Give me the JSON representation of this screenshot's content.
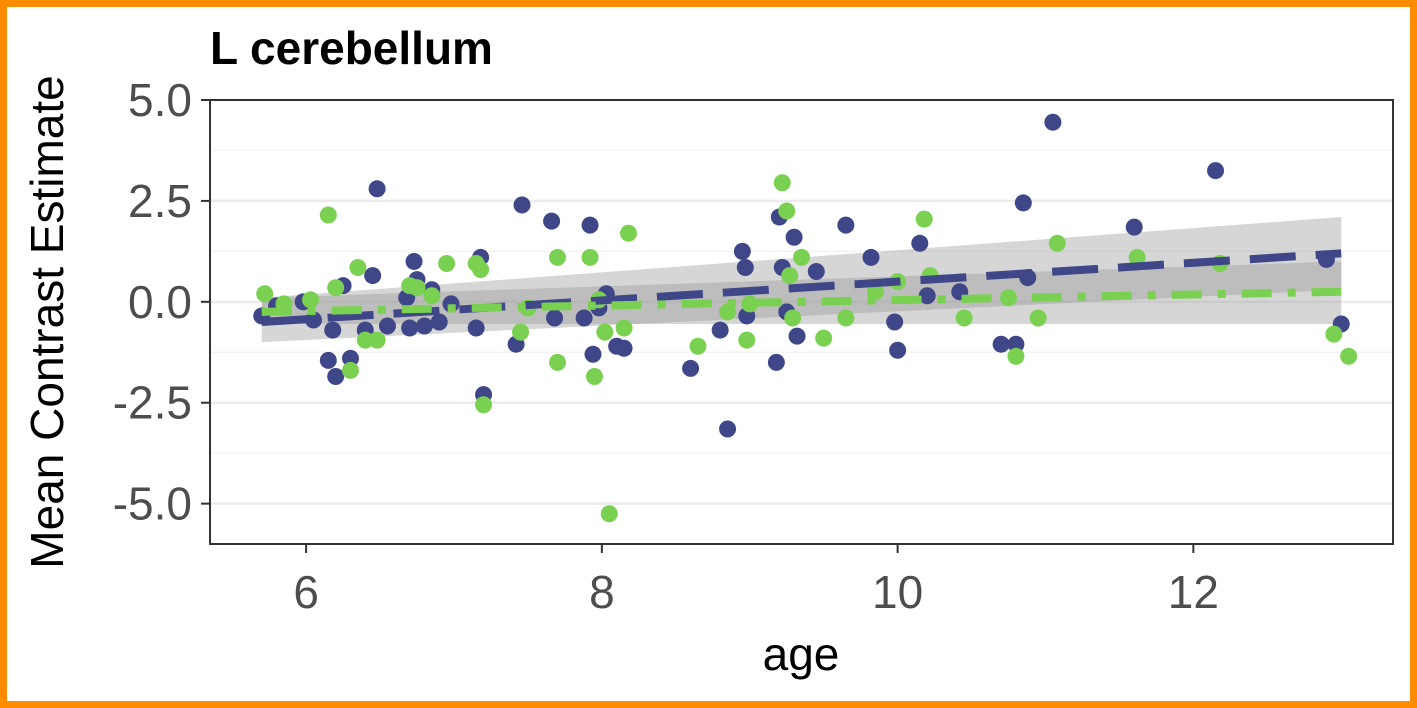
{
  "chart_data": {
    "type": "scatter",
    "title": "L cerebellum",
    "xlabel": "age",
    "ylabel": "Mean Contrast Estimate",
    "xlim": [
      5.35,
      13.35
    ],
    "ylim": [
      -6.0,
      5.0
    ],
    "xticks": [
      6,
      8,
      10,
      12
    ],
    "xtick_labels": [
      "6",
      "8",
      "10",
      "12"
    ],
    "yticks": [
      -5.0,
      -2.5,
      0.0,
      2.5,
      5.0
    ],
    "ytick_labels": [
      "-5.0",
      "-2.5",
      "0.0",
      "2.5",
      "5.0"
    ],
    "grid": true,
    "legend": "none",
    "series": [
      {
        "color": "#3f4788",
        "line_style": "long-dash",
        "fit": {
          "x": [
            5.7,
            13.0
          ],
          "y": [
            -0.5,
            1.2
          ],
          "ci_lower": [
            -1.0,
            0.3
          ],
          "ci_upper": [
            0.1,
            2.1
          ]
        },
        "points": [
          [
            5.7,
            -0.35
          ],
          [
            5.8,
            -0.1
          ],
          [
            5.98,
            0.0
          ],
          [
            6.05,
            -0.45
          ],
          [
            6.15,
            -1.45
          ],
          [
            6.18,
            -0.7
          ],
          [
            6.2,
            -1.85
          ],
          [
            6.25,
            0.4
          ],
          [
            6.3,
            -1.4
          ],
          [
            6.4,
            -0.7
          ],
          [
            6.45,
            0.65
          ],
          [
            6.48,
            2.8
          ],
          [
            6.55,
            -0.6
          ],
          [
            6.68,
            0.1
          ],
          [
            6.7,
            -0.65
          ],
          [
            6.73,
            1.0
          ],
          [
            6.75,
            0.55
          ],
          [
            6.8,
            -0.6
          ],
          [
            6.85,
            0.3
          ],
          [
            6.9,
            -0.5
          ],
          [
            6.98,
            -0.05
          ],
          [
            7.15,
            -0.65
          ],
          [
            7.18,
            1.1
          ],
          [
            7.2,
            -2.3
          ],
          [
            7.42,
            -1.05
          ],
          [
            7.46,
            2.4
          ],
          [
            7.66,
            2.0
          ],
          [
            7.68,
            -0.4
          ],
          [
            7.88,
            -0.4
          ],
          [
            7.92,
            1.9
          ],
          [
            7.94,
            -1.3
          ],
          [
            7.98,
            -0.15
          ],
          [
            8.03,
            0.2
          ],
          [
            8.1,
            -1.1
          ],
          [
            8.15,
            -1.15
          ],
          [
            8.6,
            -1.65
          ],
          [
            8.8,
            -0.7
          ],
          [
            8.85,
            -3.15
          ],
          [
            8.95,
            1.25
          ],
          [
            8.97,
            0.85
          ],
          [
            8.98,
            -0.35
          ],
          [
            9.18,
            -1.5
          ],
          [
            9.2,
            2.1
          ],
          [
            9.22,
            0.85
          ],
          [
            9.25,
            -0.25
          ],
          [
            9.3,
            1.6
          ],
          [
            9.32,
            -0.85
          ],
          [
            9.45,
            0.75
          ],
          [
            9.65,
            1.9
          ],
          [
            9.82,
            1.1
          ],
          [
            9.98,
            -0.5
          ],
          [
            10.0,
            -1.2
          ],
          [
            10.15,
            1.45
          ],
          [
            10.2,
            0.15
          ],
          [
            10.42,
            0.25
          ],
          [
            10.7,
            -1.05
          ],
          [
            10.8,
            -1.05
          ],
          [
            10.85,
            2.45
          ],
          [
            10.88,
            0.6
          ],
          [
            11.05,
            4.45
          ],
          [
            11.6,
            1.85
          ],
          [
            12.15,
            3.25
          ],
          [
            12.9,
            1.05
          ],
          [
            13.0,
            -0.55
          ]
        ]
      },
      {
        "color": "#7ad151",
        "line_style": "dash-dot",
        "fit": {
          "x": [
            5.7,
            13.0
          ],
          "y": [
            -0.25,
            0.25
          ],
          "ci_lower": [
            -0.55,
            -0.55
          ],
          "ci_upper": [
            0.1,
            1.0
          ]
        },
        "points": [
          [
            5.72,
            0.2
          ],
          [
            5.85,
            -0.05
          ],
          [
            6.03,
            0.05
          ],
          [
            6.15,
            2.15
          ],
          [
            6.2,
            0.35
          ],
          [
            6.3,
            -1.7
          ],
          [
            6.35,
            0.85
          ],
          [
            6.4,
            -0.95
          ],
          [
            6.48,
            -0.95
          ],
          [
            6.7,
            0.4
          ],
          [
            6.75,
            0.35
          ],
          [
            6.85,
            0.15
          ],
          [
            6.95,
            0.95
          ],
          [
            7.15,
            0.95
          ],
          [
            7.18,
            0.8
          ],
          [
            7.2,
            -2.55
          ],
          [
            7.45,
            -0.75
          ],
          [
            7.5,
            -0.15
          ],
          [
            7.7,
            1.1
          ],
          [
            7.7,
            -1.5
          ],
          [
            7.92,
            1.1
          ],
          [
            7.95,
            -1.85
          ],
          [
            7.98,
            0.05
          ],
          [
            8.02,
            -0.75
          ],
          [
            8.05,
            -5.25
          ],
          [
            8.15,
            -0.65
          ],
          [
            8.18,
            1.7
          ],
          [
            8.65,
            -1.1
          ],
          [
            8.85,
            -0.25
          ],
          [
            8.98,
            -0.95
          ],
          [
            9.0,
            -0.05
          ],
          [
            9.22,
            2.95
          ],
          [
            9.25,
            2.25
          ],
          [
            9.27,
            0.65
          ],
          [
            9.29,
            -0.4
          ],
          [
            9.35,
            1.1
          ],
          [
            9.5,
            -0.9
          ],
          [
            9.65,
            -0.4
          ],
          [
            9.85,
            0.25
          ],
          [
            10.0,
            0.5
          ],
          [
            10.18,
            2.05
          ],
          [
            10.22,
            0.65
          ],
          [
            10.45,
            -0.4
          ],
          [
            10.75,
            0.1
          ],
          [
            10.8,
            -1.35
          ],
          [
            10.95,
            -0.4
          ],
          [
            11.08,
            1.45
          ],
          [
            11.62,
            1.1
          ],
          [
            12.18,
            0.95
          ],
          [
            12.95,
            -0.8
          ],
          [
            13.05,
            -1.35
          ]
        ]
      }
    ]
  }
}
